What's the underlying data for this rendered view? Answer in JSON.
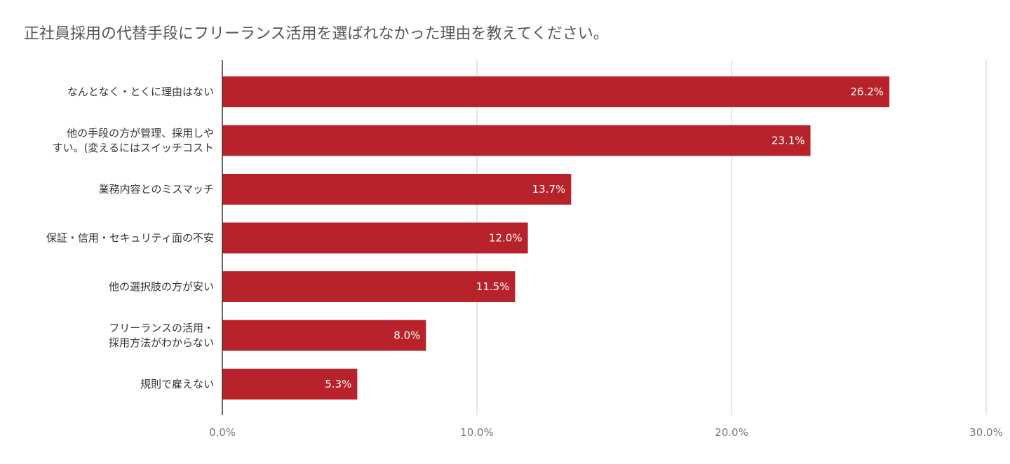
{
  "chart_data": {
    "type": "bar",
    "orientation": "horizontal",
    "title": "正社員採用の代替手段にフリーランス活用を選ばれなかった理由を教えてください。",
    "categories": [
      [
        "なんとなく・とくに理由はない"
      ],
      [
        "他の手段の方が管理、採用しや",
        "すい。(変えるにはスイッチコスト"
      ],
      [
        "業務内容とのミスマッチ"
      ],
      [
        "保証・信用・セキュリティ面の不安"
      ],
      [
        "他の選択肢の方が安い"
      ],
      [
        "フリーランスの活用・",
        "採用方法がわからない"
      ],
      [
        "規則で雇えない"
      ]
    ],
    "values": [
      26.2,
      23.1,
      13.7,
      12.0,
      11.5,
      8.0,
      5.3
    ],
    "data_labels": [
      "26.2%",
      "23.1%",
      "13.7%",
      "12.0%",
      "11.5%",
      "8.0%",
      "5.3%"
    ],
    "xlim": [
      0,
      30
    ],
    "xticks": [
      0,
      10,
      20,
      30
    ],
    "xtick_labels": [
      "0.0%",
      "10.0%",
      "20.0%",
      "30.0%"
    ],
    "grid": true,
    "bar_color": "#b8232b",
    "grid_color": "#cccccc",
    "axis_color": "#333333"
  }
}
